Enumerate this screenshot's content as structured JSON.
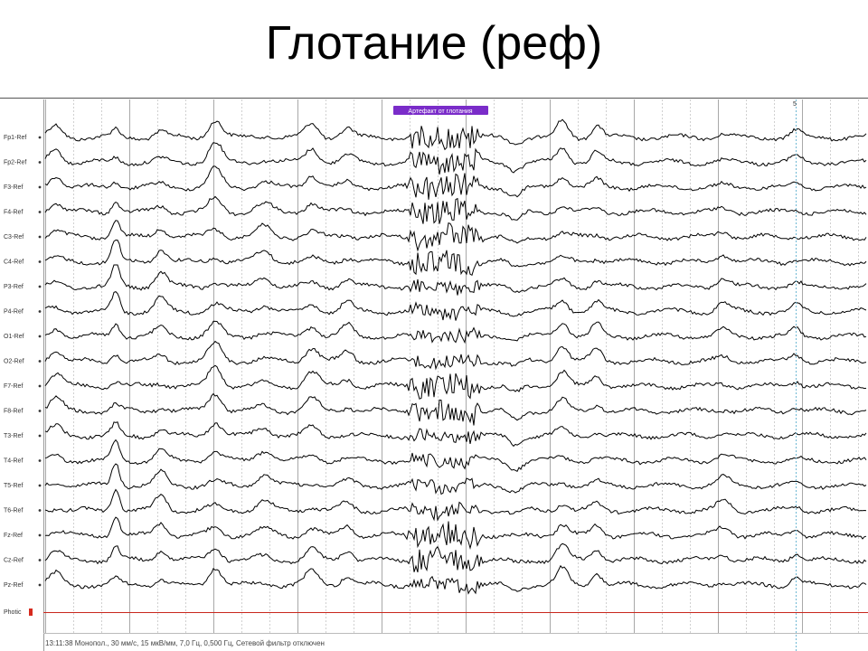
{
  "slide": {
    "title": "Глотание (реф)"
  },
  "eeg": {
    "event_marker_label": "Артефакт от глотания",
    "event_marker_color": "#7a2cc9",
    "trace_color": "#000000",
    "photic_line_color": "#c8281e",
    "cursor_marker_label": "5",
    "status_text": "13:11:38 Монопол., 30 мм/с, 15 мкВ/мм, 7,0 Гц, 0,500 Гц, Сетевой фильтр отключен",
    "photic_label": "Photic",
    "channels": [
      "Fp1-Ref",
      "Fp2-Ref",
      "F3-Ref",
      "F4-Ref",
      "C3-Ref",
      "C4-Ref",
      "P3-Ref",
      "P4-Ref",
      "O1-Ref",
      "O2-Ref",
      "F7-Ref",
      "F8-Ref",
      "T3-Ref",
      "T4-Ref",
      "T5-Ref",
      "T6-Ref",
      "Fz-Ref",
      "Cz-Ref",
      "Pz-Ref"
    ]
  }
}
